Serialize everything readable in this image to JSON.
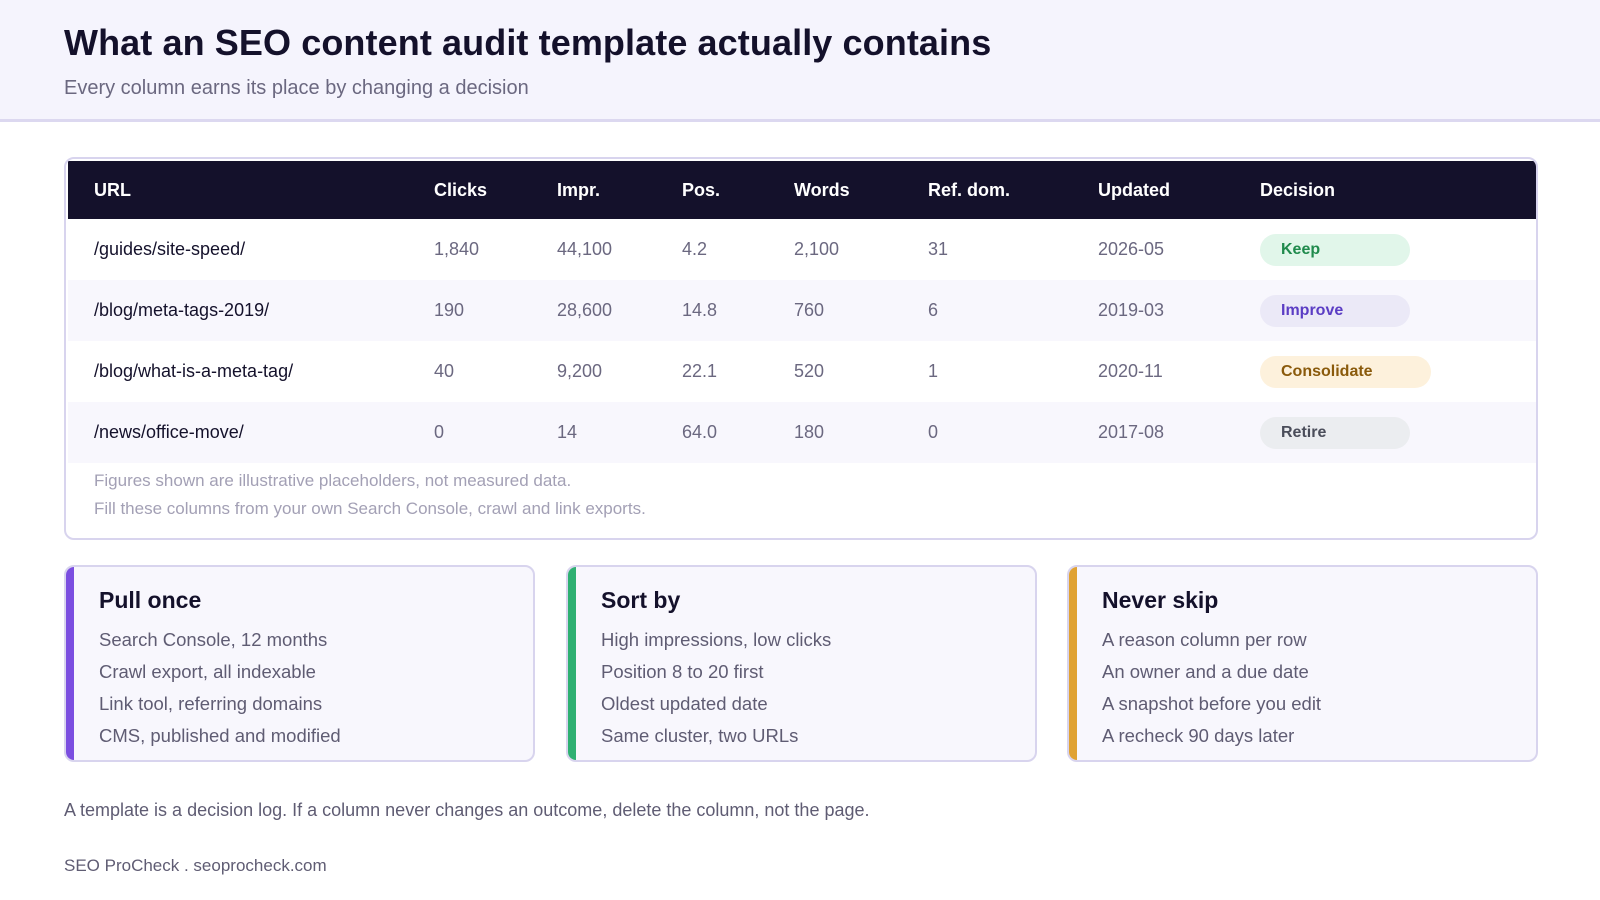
{
  "header": {
    "title": "What an SEO content audit template actually contains",
    "subtitle": "Every column earns its place by changing a decision"
  },
  "table": {
    "columns": [
      "URL",
      "Clicks",
      "Impr.",
      "Pos.",
      "Words",
      "Ref. dom.",
      "Updated",
      "Decision"
    ],
    "rows": [
      {
        "url": "/guides/site-speed/",
        "clicks": "1,840",
        "impr": "44,100",
        "pos": "4.2",
        "words": "2,100",
        "ref": "31",
        "updated": "2026-05",
        "decision": "Keep"
      },
      {
        "url": "/blog/meta-tags-2019/",
        "clicks": "190",
        "impr": "28,600",
        "pos": "14.8",
        "words": "760",
        "ref": "6",
        "updated": "2019-03",
        "decision": "Improve"
      },
      {
        "url": "/blog/what-is-a-meta-tag/",
        "clicks": "40",
        "impr": "9,200",
        "pos": "22.1",
        "words": "520",
        "ref": "1",
        "updated": "2020-11",
        "decision": "Consolidate"
      },
      {
        "url": "/news/office-move/",
        "clicks": "0",
        "impr": "14",
        "pos": "64.0",
        "words": "180",
        "ref": "0",
        "updated": "2017-08",
        "decision": "Retire"
      }
    ],
    "notes": [
      "Figures shown are illustrative placeholders, not measured data.",
      "Fill these columns from your own Search Console, crawl and link exports."
    ]
  },
  "badge_colors": {
    "Keep": {
      "bg": "#e1f6ea",
      "fg": "#1f8a4c"
    },
    "Improve": {
      "bg": "#ebe9f7",
      "fg": "#5b3dc4"
    },
    "Consolidate": {
      "bg": "#fdf1dc",
      "fg": "#8a5a0b"
    },
    "Retire": {
      "bg": "#ebedf0",
      "fg": "#4a4d5a"
    }
  },
  "cards": [
    {
      "title": "Pull once",
      "accent": "#7b4ee0",
      "items": [
        "Search Console, 12 months",
        "Crawl export, all indexable",
        "Link tool, referring domains",
        "CMS, published and modified"
      ]
    },
    {
      "title": "Sort by",
      "accent": "#2fb072",
      "items": [
        "High impressions, low clicks",
        "Position 8 to 20 first",
        "Oldest updated date",
        "Same cluster, two URLs"
      ]
    },
    {
      "title": "Never skip",
      "accent": "#e0a233",
      "items": [
        "A reason column per row",
        "An owner and a due date",
        "A snapshot before you edit",
        "A recheck 90 days later"
      ]
    }
  ],
  "footnote": "A template is a decision log. If a column never changes an outcome, delete the column, not the page.",
  "brand": "SEO ProCheck . seoprocheck.com"
}
